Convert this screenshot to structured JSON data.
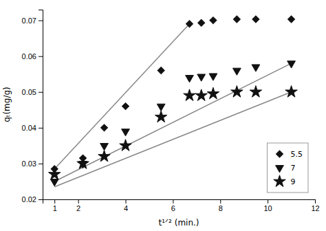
{
  "chart_data": {
    "type": "scatter",
    "xlabel": "t¹ᐟ² (min.)",
    "ylabel": "qₜ(mg/g)",
    "xlim": [
      0.5,
      12
    ],
    "ylim": [
      0.02,
      0.073
    ],
    "xticks": [
      1,
      2,
      4,
      6,
      8,
      10,
      12
    ],
    "yticks": [
      0.02,
      0.03,
      0.04,
      0.05,
      0.06,
      0.07
    ],
    "grid": false,
    "legend": "lower right",
    "series": [
      {
        "type": "line",
        "color": "#888888",
        "x": [
          1.0,
          6.7
        ],
        "values": [
          0.0285,
          0.069
        ]
      },
      {
        "type": "scatter",
        "name": "5.5",
        "marker": "diamond",
        "color": "#111111",
        "x": [
          1.0,
          2.2,
          3.1,
          4.0,
          5.5,
          6.7,
          7.2,
          7.7,
          8.7,
          9.5,
          11.0
        ],
        "values": [
          0.0285,
          0.0315,
          0.04,
          0.046,
          0.056,
          0.069,
          0.0693,
          0.07,
          0.0703,
          0.0703,
          0.0703
        ]
      },
      {
        "type": "line",
        "color": "#888888",
        "x": [
          1.0,
          11.0
        ],
        "values": [
          0.025,
          0.058
        ]
      },
      {
        "type": "scatter",
        "name": "7",
        "marker": "triangle-down",
        "color": "#111111",
        "x": [
          1.0,
          2.2,
          3.1,
          4.0,
          5.5,
          6.7,
          7.2,
          7.7,
          8.7,
          9.5,
          11.0
        ],
        "values": [
          0.025,
          0.03,
          0.035,
          0.039,
          0.046,
          0.054,
          0.0543,
          0.0545,
          0.056,
          0.057,
          0.058
        ]
      },
      {
        "type": "line",
        "color": "#888888",
        "x": [
          1.0,
          11.0
        ],
        "values": [
          0.0235,
          0.05
        ]
      },
      {
        "type": "scatter",
        "name": "9",
        "marker": "star",
        "color": "#111111",
        "x": [
          1.0,
          2.2,
          3.1,
          4.0,
          5.5,
          6.7,
          7.2,
          7.7,
          8.7,
          9.5,
          11.0
        ],
        "values": [
          0.027,
          0.03,
          0.032,
          0.035,
          0.043,
          0.049,
          0.049,
          0.0495,
          0.05,
          0.05,
          0.05
        ]
      }
    ]
  }
}
